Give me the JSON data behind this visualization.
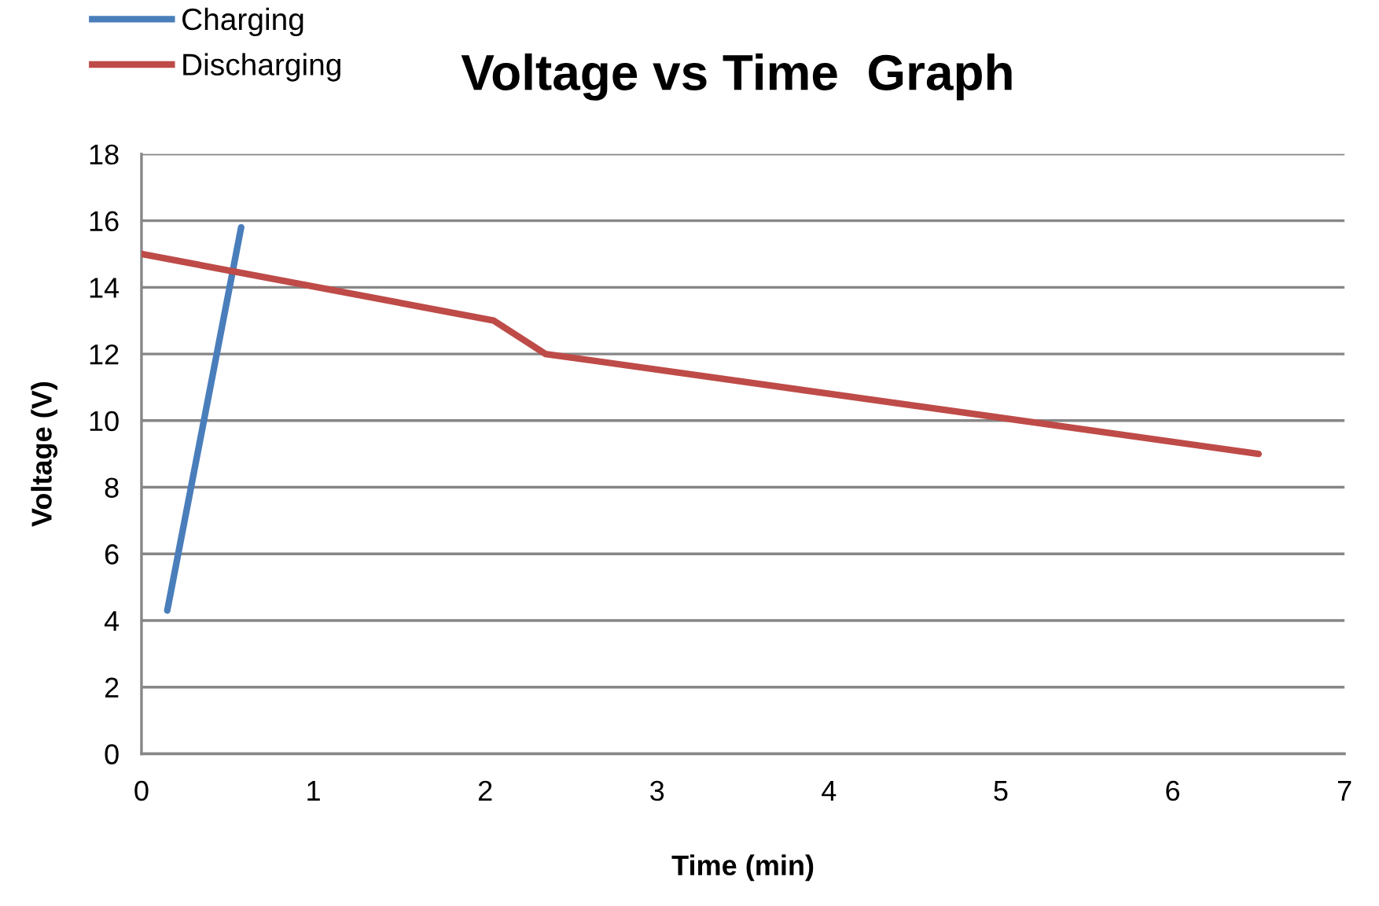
{
  "chart_data": {
    "type": "line",
    "title": "Voltage vs Time  Graph",
    "xlabel": "Time (min)",
    "ylabel": "Voltage (V)",
    "series": [
      {
        "name": "Charging",
        "color": "#4a7ebb",
        "x": [
          0.15,
          0.58
        ],
        "values": [
          4.3,
          15.8
        ]
      },
      {
        "name": "Discharging",
        "color": "#be4b48",
        "x": [
          0,
          2.05,
          2.35,
          6.5
        ],
        "values": [
          15.0,
          13.0,
          12.0,
          9.0
        ]
      }
    ],
    "xlim": [
      0,
      7
    ],
    "xticks": [
      0,
      1,
      2,
      3,
      4,
      5,
      6,
      7
    ],
    "ylim": [
      0,
      18
    ],
    "yticks": [
      0,
      2,
      4,
      6,
      8,
      10,
      12,
      14,
      16,
      18
    ],
    "grid": "y",
    "legend": "top left",
    "marker": "none",
    "line_style": "solid"
  }
}
